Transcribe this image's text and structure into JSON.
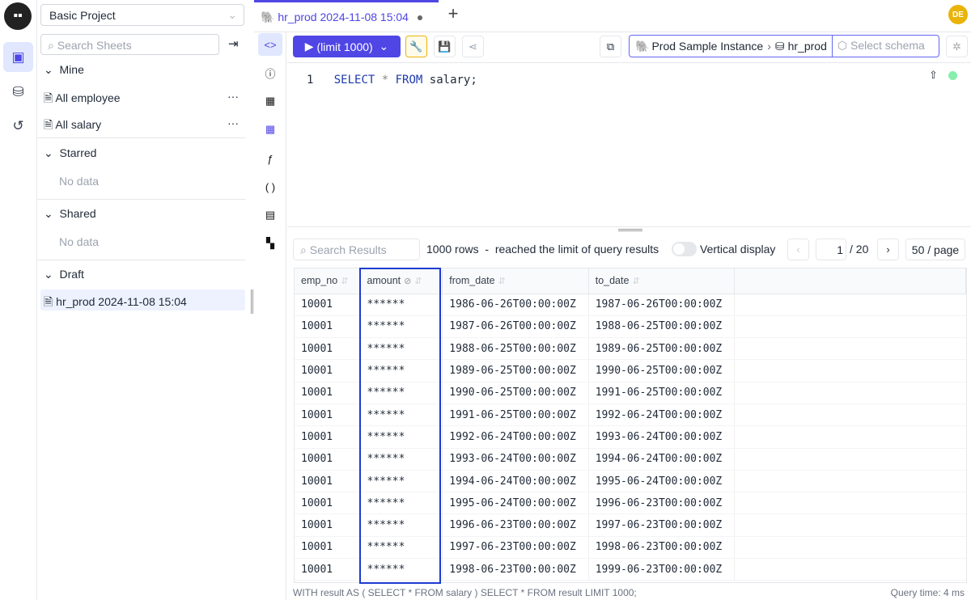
{
  "app": {
    "avatar": "DE",
    "brand_color": "#4f46e5",
    "highlight_color": "#1d3bd1"
  },
  "sidebar": {
    "project": "Basic Project",
    "search_placeholder": "Search Sheets",
    "sections": [
      {
        "title": "Mine",
        "items": [
          "All employee",
          "All salary"
        ]
      },
      {
        "title": "Starred",
        "empty": "No data"
      },
      {
        "title": "Shared",
        "empty": "No data"
      },
      {
        "title": "Draft",
        "items": [
          "hr_prod 2024-11-08 15:04"
        ]
      }
    ]
  },
  "tabs": [
    {
      "label": "hr_prod 2024-11-08 15:04",
      "unsaved": true
    }
  ],
  "toolbar": {
    "run_label": "(limit 1000)",
    "instance": "Prod Sample Instance",
    "database": "hr_prod",
    "schema_placeholder": "Select schema"
  },
  "editor": {
    "line_no": "1",
    "kw1": "SELECT",
    "star": "*",
    "kw2": "FROM",
    "rest": "salary;"
  },
  "results": {
    "search_placeholder": "Search Results",
    "summary": "1000 rows  -  reached the limit of query results",
    "vertical_label": "Vertical display",
    "page": "1",
    "total_pages": "/ 20",
    "page_size": "50 / page",
    "columns": [
      "emp_no",
      "amount",
      "from_date",
      "to_date"
    ],
    "rows": [
      [
        "10001",
        "******",
        "1986-06-26T00:00:00Z",
        "1987-06-26T00:00:00Z"
      ],
      [
        "10001",
        "******",
        "1987-06-26T00:00:00Z",
        "1988-06-25T00:00:00Z"
      ],
      [
        "10001",
        "******",
        "1988-06-25T00:00:00Z",
        "1989-06-25T00:00:00Z"
      ],
      [
        "10001",
        "******",
        "1989-06-25T00:00:00Z",
        "1990-06-25T00:00:00Z"
      ],
      [
        "10001",
        "******",
        "1990-06-25T00:00:00Z",
        "1991-06-25T00:00:00Z"
      ],
      [
        "10001",
        "******",
        "1991-06-25T00:00:00Z",
        "1992-06-24T00:00:00Z"
      ],
      [
        "10001",
        "******",
        "1992-06-24T00:00:00Z",
        "1993-06-24T00:00:00Z"
      ],
      [
        "10001",
        "******",
        "1993-06-24T00:00:00Z",
        "1994-06-24T00:00:00Z"
      ],
      [
        "10001",
        "******",
        "1994-06-24T00:00:00Z",
        "1995-06-24T00:00:00Z"
      ],
      [
        "10001",
        "******",
        "1995-06-24T00:00:00Z",
        "1996-06-23T00:00:00Z"
      ],
      [
        "10001",
        "******",
        "1996-06-23T00:00:00Z",
        "1997-06-23T00:00:00Z"
      ],
      [
        "10001",
        "******",
        "1997-06-23T00:00:00Z",
        "1998-06-23T00:00:00Z"
      ],
      [
        "10001",
        "******",
        "1998-06-23T00:00:00Z",
        "1999-06-23T00:00:00Z"
      ]
    ],
    "footer_sql": "WITH result AS ( SELECT * FROM salary ) SELECT * FROM result LIMIT 1000;",
    "query_time": "Query time: 4 ms"
  }
}
